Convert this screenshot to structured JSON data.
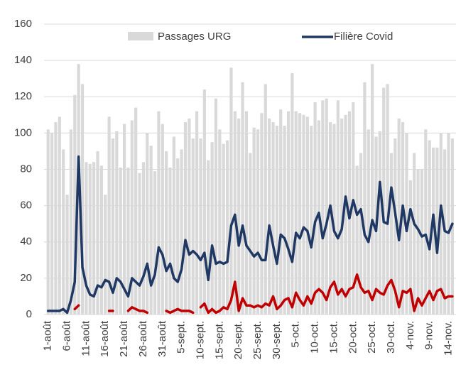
{
  "chart_data": {
    "type": "bar-line",
    "categories": [
      "1-août",
      null,
      null,
      null,
      null,
      "6-août",
      null,
      null,
      null,
      null,
      "11-août",
      null,
      null,
      null,
      null,
      "16-août",
      null,
      null,
      null,
      null,
      "21-août",
      null,
      null,
      null,
      null,
      "26-août",
      null,
      null,
      null,
      null,
      "31-août",
      null,
      null,
      null,
      null,
      "5-sept.",
      null,
      null,
      null,
      null,
      "10-sept.",
      null,
      null,
      null,
      null,
      "15-sept.",
      null,
      null,
      null,
      null,
      "20-sept.",
      null,
      null,
      null,
      null,
      "25-sept.",
      null,
      null,
      null,
      null,
      "30-sept.",
      null,
      null,
      null,
      null,
      "5-oct.",
      null,
      null,
      null,
      null,
      "10-oct.",
      null,
      null,
      null,
      null,
      "15-oct.",
      null,
      null,
      null,
      null,
      "20-oct.",
      null,
      null,
      null,
      null,
      "25-oct.",
      null,
      null,
      null,
      null,
      "30-oct.",
      null,
      null,
      null,
      null,
      "4-nov.",
      null,
      null,
      null,
      null,
      "9-nov.",
      null,
      null,
      null,
      null,
      "14-nov.",
      null
    ],
    "series": [
      {
        "name": "Passages URG",
        "kind": "bar",
        "color": "#d9d9d9",
        "values": [
          102,
          100,
          106,
          109,
          91,
          66,
          102,
          121,
          138,
          127,
          84,
          83,
          84,
          90,
          82,
          66,
          109,
          97,
          101,
          81,
          105,
          81,
          107,
          114,
          78,
          84,
          100,
          93,
          79,
          112,
          105,
          90,
          81,
          98,
          86,
          91,
          106,
          108,
          97,
          112,
          97,
          124,
          85,
          95,
          119,
          102,
          94,
          96,
          136,
          112,
          108,
          128,
          112,
          89,
          103,
          102,
          111,
          127,
          108,
          106,
          104,
          113,
          104,
          112,
          133,
          112,
          111,
          110,
          109,
          104,
          117,
          107,
          118,
          119,
          106,
          105,
          118,
          108,
          110,
          112,
          117,
          82,
          89,
          128,
          102,
          138,
          98,
          101,
          125,
          127,
          89,
          97,
          108,
          106,
          100,
          74,
          89,
          80,
          80,
          102,
          96,
          92,
          92,
          100,
          91,
          100,
          97
        ]
      },
      {
        "name": "Filière Covid",
        "kind": "line",
        "color": "#203864",
        "values": [
          2,
          2,
          2,
          2,
          3,
          1,
          8,
          18,
          87,
          26,
          16,
          11,
          10,
          16,
          15,
          19,
          18,
          12,
          20,
          18,
          14,
          10,
          20,
          18,
          16,
          21,
          28,
          16,
          22,
          37,
          33,
          24,
          28,
          20,
          18,
          25,
          41,
          33,
          35,
          33,
          30,
          34,
          19,
          38,
          28,
          29,
          28,
          29,
          49,
          55,
          38,
          49,
          38,
          35,
          32,
          34,
          30,
          30,
          49,
          38,
          28,
          44,
          42,
          36,
          29,
          45,
          42,
          48,
          46,
          37,
          51,
          56,
          42,
          50,
          60,
          46,
          42,
          47,
          65,
          53,
          63,
          55,
          58,
          44,
          40,
          52,
          46,
          73,
          51,
          50,
          70,
          56,
          41,
          60,
          46,
          58,
          50,
          47,
          43,
          44,
          36,
          55,
          34,
          60,
          46,
          45,
          50
        ]
      },
      {
        "kind": "line",
        "color": "#c00000",
        "values": [
          null,
          null,
          null,
          null,
          null,
          null,
          null,
          3,
          5,
          null,
          null,
          null,
          null,
          null,
          null,
          null,
          2,
          2,
          null,
          null,
          null,
          2,
          4,
          3,
          2,
          2,
          1,
          null,
          null,
          null,
          null,
          2,
          1,
          2,
          3,
          2,
          2,
          2,
          1,
          null,
          4,
          6,
          1,
          3,
          1,
          2,
          4,
          3,
          8,
          18,
          2,
          9,
          5,
          5,
          4,
          5,
          4,
          6,
          5,
          10,
          3,
          5,
          8,
          9,
          4,
          12,
          8,
          5,
          10,
          6,
          12,
          14,
          12,
          8,
          15,
          18,
          11,
          14,
          10,
          14,
          15,
          22,
          15,
          12,
          13,
          8,
          14,
          12,
          11,
          16,
          19,
          13,
          4,
          13,
          12,
          14,
          2,
          9,
          5,
          9,
          13,
          8,
          13,
          14,
          9,
          10,
          10
        ]
      }
    ],
    "ylim": [
      0,
      160
    ],
    "yticks": [
      0,
      20,
      40,
      60,
      80,
      100,
      120,
      140,
      160
    ],
    "grid": true
  }
}
